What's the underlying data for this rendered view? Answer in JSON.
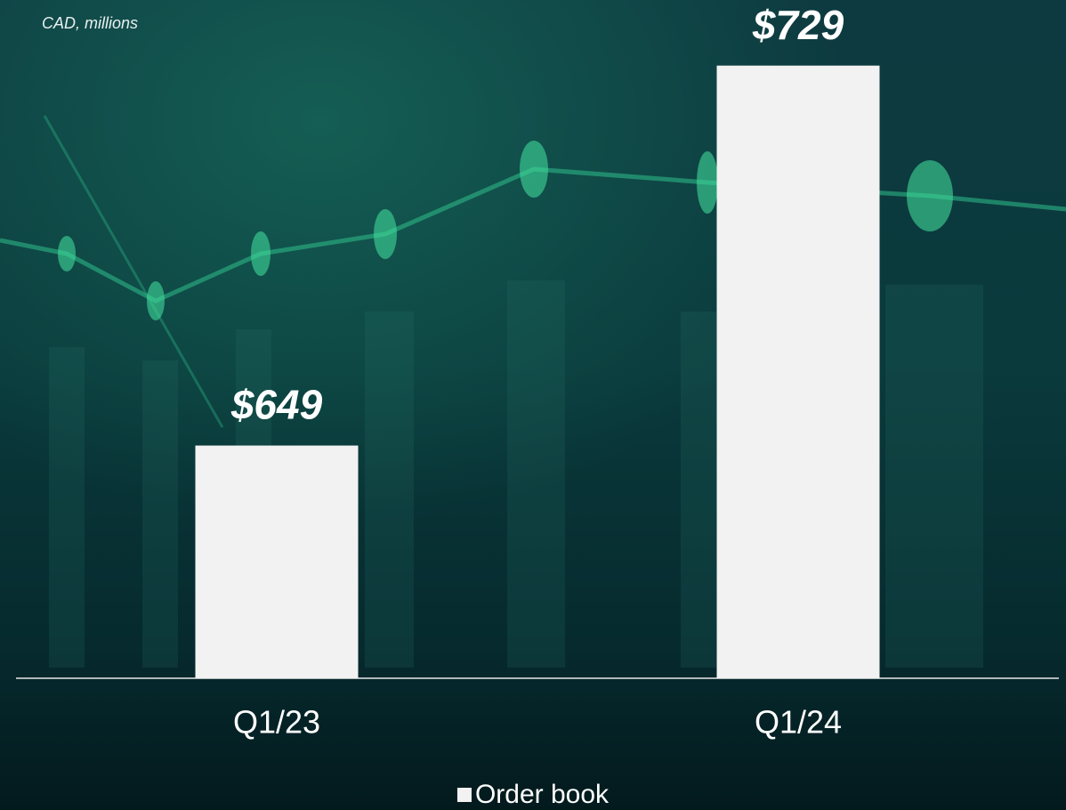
{
  "chart_data": {
    "type": "bar",
    "subtitle": "CAD, millions",
    "categories": [
      "Q1/23",
      "Q1/24"
    ],
    "series": [
      {
        "name": "Order book",
        "color": "#f2f2f2",
        "values": [
          649,
          729
        ],
        "value_labels": [
          "$649",
          "$729"
        ]
      }
    ],
    "ylim": [
      600,
      740
    ],
    "legend": "bottom"
  }
}
